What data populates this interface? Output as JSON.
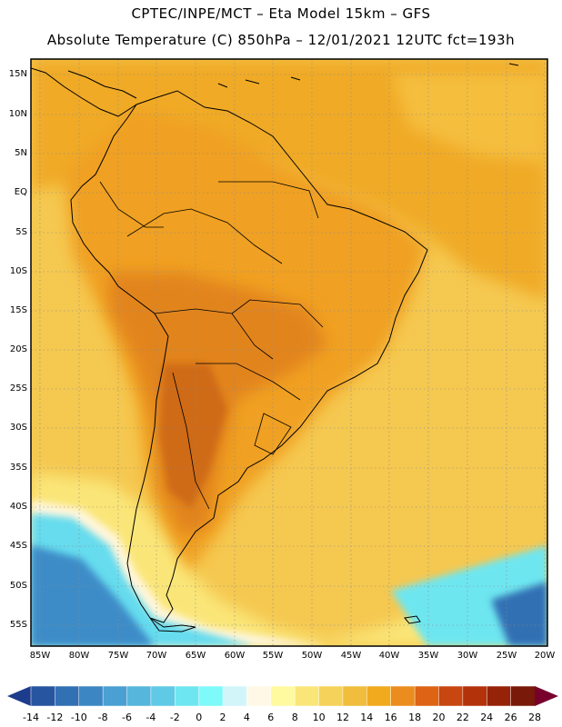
{
  "header": {
    "line1": "CPTEC/INPE/MCT –  Eta Model 15km – GFS",
    "line2": "Absolute Temperature (C) 850hPa – 12/01/2021 12UTC fct=193h"
  },
  "axes": {
    "lat_labels": [
      "15N",
      "10N",
      "5N",
      "EQ",
      "5S",
      "10S",
      "15S",
      "20S",
      "25S",
      "30S",
      "35S",
      "40S",
      "45S",
      "50S",
      "55S"
    ],
    "lon_labels": [
      "85W",
      "80W",
      "75W",
      "70W",
      "65W",
      "60W",
      "55W",
      "50W",
      "45W",
      "40W",
      "35W",
      "30W",
      "25W",
      "20W"
    ]
  },
  "colorbar": {
    "unit": "C",
    "labels": [
      "-14",
      "-12",
      "-10",
      "-8",
      "-6",
      "-4",
      "-2",
      "0",
      "2",
      "4",
      "6",
      "8",
      "10",
      "12",
      "14",
      "16",
      "18",
      "20",
      "22",
      "24",
      "26",
      "28"
    ],
    "colors": [
      "#1e3c8c",
      "#2855a0",
      "#3270b4",
      "#3c87c3",
      "#4aa0d2",
      "#56b6dc",
      "#60cae6",
      "#6ee6f0",
      "#7efafa",
      "#d2f5fa",
      "#fff8e6",
      "#fffaa0",
      "#fae678",
      "#f5d25a",
      "#f0be3c",
      "#f0aa1e",
      "#eb8c1e",
      "#dc6414",
      "#c84610",
      "#b4320a",
      "#962308",
      "#78190a",
      "#78002d"
    ]
  },
  "map": {
    "title": "Absolute Temperature 850hPa",
    "colors": {
      "ocean_warm": "#f5c850",
      "land_base": "#f0a528",
      "hot_core": "#dc7a1e",
      "very_hot": "#c8641a",
      "cool_band": "#fae678",
      "cold_water": "#60d8ec",
      "coldest": "#3c8cc8",
      "deep_cold": "#2855a0"
    }
  }
}
